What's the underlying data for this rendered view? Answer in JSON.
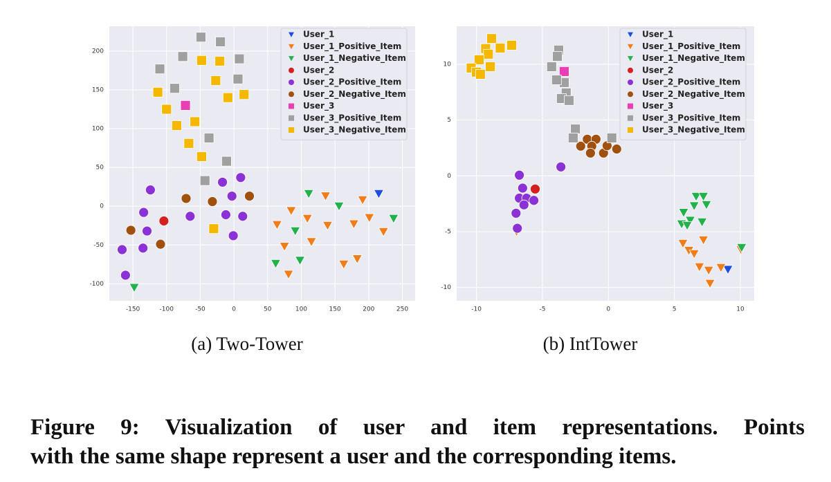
{
  "chart_data": [
    {
      "type": "scatter",
      "title": "(a) Two-Tower",
      "legend": "upper right",
      "grid": true,
      "xlim": [
        -185,
        269
      ],
      "ylim": [
        -122,
        232
      ],
      "xticks": [
        -150,
        -100,
        -50,
        0,
        50,
        100,
        150,
        200,
        250
      ],
      "yticks": [
        -100,
        -50,
        0,
        50,
        100,
        150,
        200
      ],
      "series": [
        {
          "name": "User_1",
          "color": "#1f4fe0",
          "marker": "v",
          "x": [
            215
          ],
          "values": [
            16
          ]
        },
        {
          "name": "User_1_Positive_Item",
          "color": "#f07d1c",
          "marker": "v",
          "x": [
            64,
            85,
            75,
            81,
            109,
            115,
            136,
            139,
            163,
            178,
            183,
            191,
            201,
            222
          ],
          "values": [
            -24,
            -6,
            -52,
            -88,
            -16,
            -46,
            13,
            -25,
            -75,
            -23,
            -68,
            8,
            -15,
            -33
          ]
        },
        {
          "name": "User_1_Negative_Item",
          "color": "#22b14c",
          "marker": "v",
          "x": [
            -148,
            62,
            91,
            98,
            111,
            156,
            237
          ],
          "values": [
            -105,
            -74,
            -32,
            -70,
            16,
            0,
            -16
          ]
        },
        {
          "name": "User_2",
          "color": "#d62020",
          "marker": "o",
          "x": [
            -104
          ],
          "values": [
            -19
          ]
        },
        {
          "name": "User_2_Positive_Item",
          "color": "#8b32d6",
          "marker": "o",
          "x": [
            -124,
            -134,
            -129,
            -135,
            -166,
            -161,
            -65,
            -17,
            -12,
            -3,
            -1,
            10,
            13
          ],
          "values": [
            21,
            -8,
            -32,
            -54,
            -56,
            -89,
            -13,
            31,
            -11,
            13,
            -38,
            37,
            -13
          ]
        },
        {
          "name": "User_2_Negative_Item",
          "color": "#a0500f",
          "marker": "o",
          "x": [
            -153,
            -109,
            -71,
            -32,
            23
          ],
          "values": [
            -31,
            -49,
            10,
            6,
            13
          ]
        },
        {
          "name": "User_3",
          "color": "#e83fb4",
          "marker": "s",
          "x": [
            -72
          ],
          "values": [
            130
          ]
        },
        {
          "name": "User_3_Positive_Item",
          "color": "#a0a0a0",
          "marker": "s",
          "x": [
            -49,
            -20,
            -76,
            8,
            -110,
            6,
            -88,
            -37,
            -11,
            -43
          ],
          "values": [
            218,
            212,
            193,
            190,
            177,
            164,
            152,
            88,
            58,
            33
          ]
        },
        {
          "name": "User_3_Negative_Item",
          "color": "#f5b800",
          "marker": "s",
          "x": [
            -48,
            -21,
            -27,
            15,
            -9,
            -113,
            -100,
            -85,
            -58,
            -67,
            -48,
            -30
          ],
          "values": [
            188,
            187,
            162,
            144,
            140,
            147,
            125,
            104,
            109,
            81,
            64,
            -29
          ]
        }
      ]
    },
    {
      "type": "scatter",
      "title": "(b) IntTower",
      "legend": "upper right",
      "grid": true,
      "xlim": [
        -11.5,
        11.05
      ],
      "ylim": [
        -11.2,
        13.4
      ],
      "xticks": [
        -10,
        -5,
        0,
        5,
        10
      ],
      "yticks": [
        -10,
        -5,
        0,
        5,
        10
      ],
      "series": [
        {
          "name": "User_1",
          "color": "#1f4fe0",
          "marker": "v",
          "x": [
            9.06
          ],
          "values": [
            -8.4
          ]
        },
        {
          "name": "User_1_Positive_Item",
          "color": "#f07d1c",
          "marker": "v",
          "x": [
            5.65,
            6.1,
            6.5,
            7.2,
            6.9,
            7.6,
            7.7,
            8.53,
            10.05,
            -6.96
          ],
          "values": [
            -6.07,
            -6.7,
            -7.0,
            -5.76,
            -8.17,
            -8.48,
            -9.66,
            -8.23,
            -6.63,
            -5.0
          ]
        },
        {
          "name": "User_1_Negative_Item",
          "color": "#22b14c",
          "marker": "v",
          "x": [
            6.65,
            7.2,
            7.43,
            6.5,
            5.7,
            6.2,
            5.55,
            5.97,
            7.1,
            10.1
          ],
          "values": [
            -1.86,
            -1.86,
            -2.6,
            -2.7,
            -3.3,
            -4.0,
            -4.33,
            -4.46,
            -4.15,
            -6.44
          ]
        },
        {
          "name": "User_2",
          "color": "#d62020",
          "marker": "o",
          "x": [
            -5.55
          ],
          "values": [
            -1.18
          ]
        },
        {
          "name": "User_2_Positive_Item",
          "color": "#8b32d6",
          "marker": "o",
          "x": [
            -6.75,
            -6.5,
            -6.75,
            -6.2,
            -6.4,
            -5.65,
            -7.0,
            -6.9,
            -3.6
          ],
          "values": [
            0.06,
            -1.1,
            -2.0,
            -2.0,
            -2.6,
            -2.2,
            -3.35,
            -4.7,
            0.8
          ]
        },
        {
          "name": "User_2_Negative_Item",
          "color": "#a0500f",
          "marker": "o",
          "x": [
            -2.1,
            -1.6,
            -0.94,
            -1.26,
            -1.36,
            -0.37,
            -0.1,
            0.63
          ],
          "values": [
            2.66,
            3.28,
            3.28,
            2.66,
            2.04,
            2.04,
            2.7,
            2.4
          ]
        },
        {
          "name": "User_3",
          "color": "#e83fb4",
          "marker": "s",
          "x": [
            -3.35
          ],
          "values": [
            9.35
          ]
        },
        {
          "name": "User_3_Positive_Item",
          "color": "#a0a0a0",
          "marker": "s",
          "x": [
            -3.77,
            -3.87,
            -4.3,
            -3.35,
            -3.93,
            -3.2,
            -3.56,
            -2.98,
            -2.5,
            -2.67,
            0.26
          ],
          "values": [
            11.27,
            10.7,
            9.78,
            8.36,
            8.6,
            7.43,
            6.93,
            6.75,
            4.2,
            3.4,
            3.4
          ]
        },
        {
          "name": "User_3_Negative_Item",
          "color": "#f5b800",
          "marker": "s",
          "x": [
            -8.85,
            -7.33,
            -8.2,
            -9.3,
            -9.1,
            -9.8,
            -8.95,
            -10.4,
            -10.0,
            -9.7
          ],
          "values": [
            12.3,
            11.7,
            11.45,
            11.4,
            10.9,
            10.4,
            9.78,
            9.66,
            9.29,
            9.1
          ]
        }
      ]
    }
  ],
  "caption": [
    "Figure 9: Visualization of user and item representations. Points",
    "with the same shape represent a user and the corresponding items."
  ]
}
